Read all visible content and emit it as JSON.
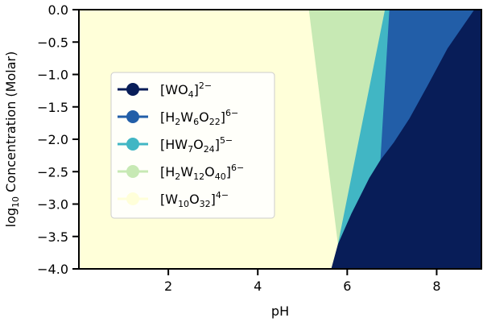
{
  "chart_data": {
    "type": "area",
    "title": "",
    "xlabel": "pH",
    "ylabel": "log₁₀ Concentration (Molar)",
    "xlim": [
      0,
      9
    ],
    "ylim": [
      -4.0,
      0.0
    ],
    "x_ticks": [
      2,
      4,
      6,
      8
    ],
    "y_ticks": [
      0.0,
      -0.5,
      -1.0,
      -1.5,
      -2.0,
      -2.5,
      -3.0,
      -3.5,
      -4.0
    ],
    "x_tick_labels": [
      "2",
      "4",
      "6",
      "8"
    ],
    "y_tick_labels": [
      "0.0",
      "−0.5",
      "−1.0",
      "−1.5",
      "−2.0",
      "−2.5",
      "−3.0",
      "−3.5",
      "−4.0"
    ],
    "grid": false,
    "legend_placement": "center-left",
    "series": [
      {
        "name": "[WO4]2−",
        "label": {
          "base": "[WO",
          "sub": "4",
          "mid": "]",
          "sup": "2−"
        },
        "color": "#081d58",
        "region": [
          [
            5.65,
            -4.0
          ],
          [
            5.8,
            -3.62
          ],
          [
            6.1,
            -3.15
          ],
          [
            6.5,
            -2.6
          ],
          [
            6.75,
            -2.32
          ],
          [
            7.05,
            -2.05
          ],
          [
            7.4,
            -1.68
          ],
          [
            7.8,
            -1.18
          ],
          [
            8.25,
            -0.6
          ],
          [
            8.85,
            0.0
          ],
          [
            9.0,
            0.0
          ],
          [
            9.0,
            -4.0
          ]
        ]
      },
      {
        "name": "[H2W6O22]6−",
        "label": {
          "base": "[H",
          "sub": "2",
          "mid": "W",
          "sub2": "6",
          "mid2": "O",
          "sub3": "22",
          "end": "]",
          "sup": "6−"
        },
        "color": "#225ea8",
        "region": [
          [
            6.75,
            -2.32
          ],
          [
            6.95,
            0.0
          ],
          [
            8.85,
            0.0
          ],
          [
            8.25,
            -0.6
          ],
          [
            7.8,
            -1.18
          ],
          [
            7.4,
            -1.68
          ],
          [
            7.05,
            -2.05
          ]
        ]
      },
      {
        "name": "[HW7O24]5−",
        "label": {
          "base": "[HW",
          "sub": "7",
          "mid": "O",
          "sub2": "24",
          "end": "]",
          "sup": "5−"
        },
        "color": "#41b6c4",
        "region": [
          [
            5.8,
            -3.62
          ],
          [
            6.85,
            0.0
          ],
          [
            6.95,
            0.0
          ],
          [
            6.75,
            -2.32
          ],
          [
            6.5,
            -2.6
          ],
          [
            6.1,
            -3.15
          ]
        ]
      },
      {
        "name": "[H2W12O40]6−",
        "label": {
          "base": "[H",
          "sub": "2",
          "mid": "W",
          "sub2": "12",
          "mid2": "O",
          "sub3": "40",
          "end": "]",
          "sup": "6−"
        },
        "color": "#c7e9b4",
        "region": [
          [
            5.15,
            0.0
          ],
          [
            6.85,
            0.0
          ],
          [
            5.8,
            -3.62
          ]
        ]
      },
      {
        "name": "[W10O32]4−",
        "label": {
          "base": "[W",
          "sub": "10",
          "mid": "O",
          "sub2": "32",
          "end": "]",
          "sup": "4−"
        },
        "color": "#ffffd9",
        "region": [
          [
            0.0,
            0.0
          ],
          [
            5.15,
            0.0
          ],
          [
            5.8,
            -3.62
          ],
          [
            5.65,
            -4.0
          ],
          [
            0.0,
            -4.0
          ]
        ]
      }
    ]
  }
}
